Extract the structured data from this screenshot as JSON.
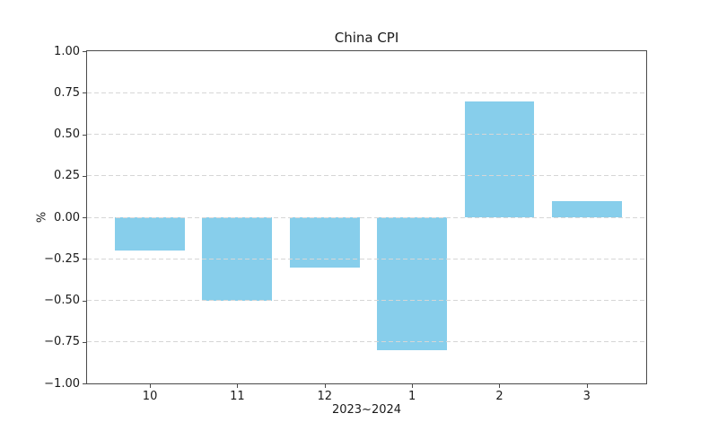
{
  "figure": {
    "background": "#ffffff"
  },
  "chart_data": {
    "type": "bar",
    "title": "China CPI",
    "xlabel": "2023~2024",
    "ylabel": "%",
    "categories": [
      "10",
      "11",
      "12",
      "1",
      "2",
      "3"
    ],
    "values": [
      -0.2,
      -0.5,
      -0.3,
      -0.8,
      0.7,
      0.1
    ],
    "ylim": [
      -1.0,
      1.0
    ],
    "yticks": [
      1.0,
      0.75,
      0.5,
      0.25,
      0.0,
      -0.25,
      -0.5,
      -0.75,
      -1.0
    ],
    "ytick_labels": [
      "1.00",
      "0.75",
      "0.50",
      "0.25",
      "0.00",
      "−0.25",
      "−0.50",
      "−0.75",
      "−1.00"
    ],
    "bar_color": "#87CEEB",
    "grid": "horizontal-dashed",
    "grid_on_top_of_bars": true,
    "grid_color": "#d6d6d6",
    "spine_color": "#4a4a4a",
    "text_color": "#1a1a1a",
    "legend": "none"
  }
}
